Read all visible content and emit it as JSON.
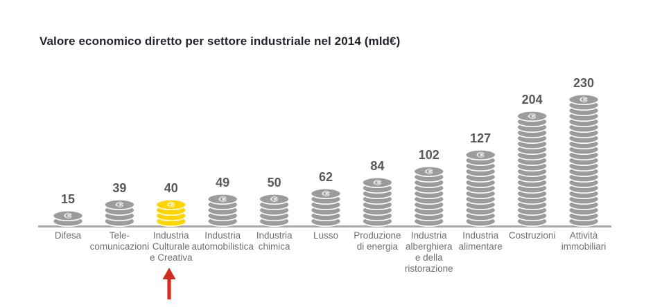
{
  "title": "Valore economico diretto per settore industriale nel 2014 (mld€)",
  "chart_data": {
    "type": "bar",
    "style": "coin-stack pictogram bar chart",
    "title": "Valore economico diretto per settore industriale nel 2014 (mld€)",
    "unit": "mld€",
    "categories": [
      "Difesa",
      "Telecomunicazioni",
      "Industria Culturale e Creativa",
      "Industria automobilistica",
      "Industria chimica",
      "Lusso",
      "Produzione di energia",
      "Industria alberghiera e della ristorazione",
      "Industria alimentare",
      "Costruzioni",
      "Attività immobiliari"
    ],
    "category_label_lines": [
      [
        "Difesa"
      ],
      [
        "Tele-",
        "comunicazioni"
      ],
      [
        "Industria",
        "Culturale",
        "e Creativa"
      ],
      [
        "Industria",
        "automobilistica"
      ],
      [
        "Industria",
        "chimica"
      ],
      [
        "Lusso"
      ],
      [
        "Produzione",
        "di energia"
      ],
      [
        "Industria",
        "alberghiera",
        "e della",
        "ristorazione"
      ],
      [
        "Industria",
        "alimentare"
      ],
      [
        "Costruzioni"
      ],
      [
        "Attività",
        "immobiliari"
      ]
    ],
    "values": [
      15,
      39,
      40,
      49,
      50,
      62,
      84,
      102,
      127,
      204,
      230
    ],
    "value_per_coin": 10,
    "highlight_index": 2,
    "highlight_category": "Industria Culturale e Creativa",
    "annotation": {
      "shape": "up-arrow",
      "points_to": "Industria Culturale e Creativa"
    },
    "legend": "none",
    "grid": "off",
    "colors": {
      "coin": "#9b9c9e",
      "highlight_coin": "#ffd500",
      "axis": "#a8a9ab",
      "arrow": "#d52b1e",
      "value_text": "#57585a",
      "category_text": "#6e6f71",
      "title_text": "#23232b"
    }
  }
}
